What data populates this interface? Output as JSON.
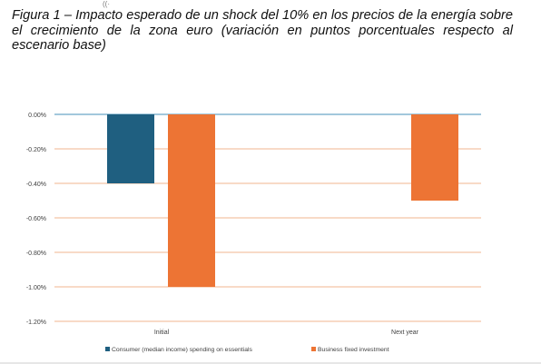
{
  "caption": "Figura 1 – Impacto esperado de un shock del 10% en los precios de la energía sobre el crecimiento de la zona euro (variación en puntos porcentuales respecto al escenario base)",
  "icons": {
    "top_mark": "wifi-icon"
  },
  "chart_data": {
    "type": "bar",
    "categories": [
      "Initial",
      "Next year"
    ],
    "series": [
      {
        "name": "Consumer (median income) spending on essentials",
        "values": [
          -0.4,
          null
        ],
        "color": "#1f5f80"
      },
      {
        "name": "Business fixed investment",
        "values": [
          -1.0,
          -0.5
        ],
        "color": "#ed7434"
      }
    ],
    "ylim": [
      -1.2,
      0.0
    ],
    "yticks": [
      "0.00%",
      "-0.20%",
      "-0.40%",
      "-0.60%",
      "-0.80%",
      "-1.00%",
      "-1.20%"
    ],
    "ytick_values": [
      0.0,
      -0.2,
      -0.4,
      -0.6,
      -0.8,
      -1.0,
      -1.2
    ],
    "grid": true,
    "grid_color": "#f0b58f",
    "zero_line_color": "#6aa6c6",
    "legend_position": "bottom",
    "xlabel": "",
    "ylabel": ""
  }
}
